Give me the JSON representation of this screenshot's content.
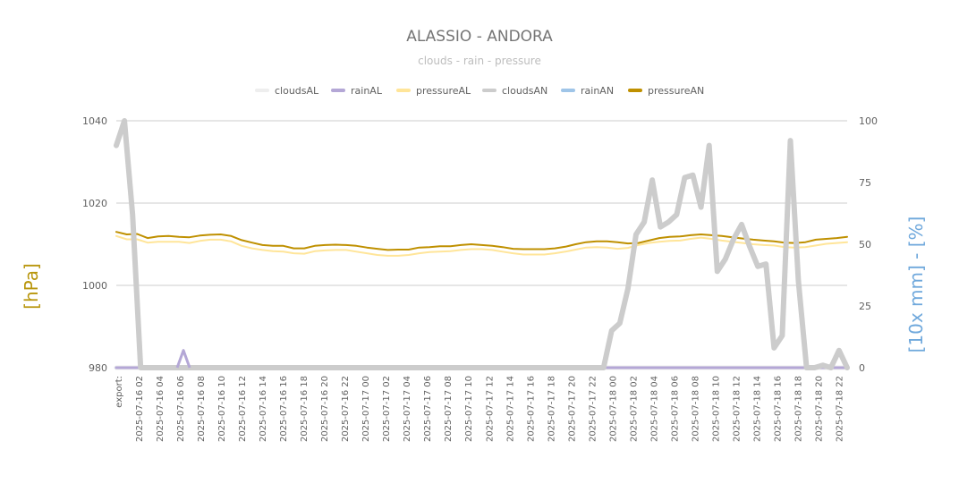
{
  "chart_data": {
    "type": "line",
    "title": "ALASSIO - ANDORA",
    "subtitle": "clouds - rain - pressure",
    "y_left": {
      "label": "[hPa]",
      "range": [
        980,
        1040
      ],
      "ticks": [
        980,
        1000,
        1020,
        1040
      ],
      "color": "#b8960c"
    },
    "y_right": {
      "label": "[10x mm] - [%]",
      "range": [
        0,
        100
      ],
      "ticks": [
        0,
        25,
        50,
        75,
        100
      ],
      "color": "#6fa8dc"
    },
    "x_labels": [
      "export:",
      "2025-07-16 02",
      "2025-07-16 04",
      "2025-07-16 06",
      "2025-07-16 08",
      "2025-07-16 10",
      "2025-07-16 12",
      "2025-07-16 14",
      "2025-07-16 16",
      "2025-07-16 18",
      "2025-07-16 20",
      "2025-07-16 22",
      "2025-07-17 00",
      "2025-07-17 02",
      "2025-07-17 04",
      "2025-07-17 06",
      "2025-07-17 08",
      "2025-07-17 10",
      "2025-07-17 12",
      "2025-07-17 14",
      "2025-07-17 16",
      "2025-07-17 18",
      "2025-07-17 20",
      "2025-07-17 22",
      "2025-07-18 00",
      "2025-07-18 02",
      "2025-07-18 04",
      "2025-07-18 06",
      "2025-07-18 08",
      "2025-07-18 10",
      "2025-07-18 12",
      "2025-07-18 14",
      "2025-07-18 16",
      "2025-07-18 18",
      "2025-07-18 20",
      "2025-07-18 22"
    ],
    "legend_position": "top",
    "grid": true,
    "series": [
      {
        "name": "cloudsAL",
        "axis": "right",
        "color": "#eeeeee",
        "width": 5,
        "values": [
          0,
          0,
          0,
          0,
          0,
          0,
          0,
          0,
          0,
          0,
          0,
          0,
          0,
          0,
          0,
          0,
          0,
          0,
          0,
          0,
          0,
          0,
          0,
          0,
          0,
          0,
          0,
          0,
          0,
          0,
          0,
          0,
          0,
          0,
          0,
          0,
          0,
          0,
          0,
          0,
          0,
          0,
          0,
          0,
          0,
          0,
          0,
          0,
          0,
          0,
          0,
          0,
          0,
          0,
          0,
          0,
          0,
          0,
          0,
          0,
          0,
          0,
          0,
          0,
          0,
          0,
          0,
          0,
          0,
          0,
          0,
          0,
          0,
          0,
          0,
          0,
          0,
          0,
          0,
          0,
          0,
          0,
          0,
          0,
          0,
          0,
          0,
          0,
          0,
          0,
          0,
          0,
          0,
          0,
          0,
          0,
          0,
          0,
          0,
          0,
          0,
          0,
          0,
          0,
          0,
          0,
          0,
          0,
          0,
          0,
          0,
          0,
          0,
          0,
          0,
          0,
          0,
          0,
          0,
          0,
          0,
          0,
          0,
          0,
          0,
          0
        ]
      },
      {
        "name": "rainAL",
        "axis": "right",
        "color": "#b4a7d6",
        "width": 3,
        "values": [
          0,
          0,
          0,
          0,
          0,
          0,
          0,
          0,
          0,
          0,
          0,
          0,
          0,
          0,
          0,
          0,
          0,
          0,
          0,
          0,
          0,
          0,
          0,
          0,
          0,
          0,
          0,
          0,
          0,
          0,
          0,
          0,
          0,
          0,
          0,
          0,
          0,
          0,
          0,
          0,
          0,
          0,
          0,
          0,
          0,
          0,
          0,
          0,
          0,
          0,
          0,
          0,
          0,
          0,
          0,
          0,
          0,
          0,
          0,
          0,
          0,
          0,
          0,
          0,
          0,
          0,
          0,
          0,
          0,
          0,
          0,
          0,
          0,
          0,
          0,
          0,
          0,
          0,
          0,
          0,
          0,
          0,
          0,
          0,
          0,
          0,
          0,
          0,
          0,
          0,
          0,
          0,
          0,
          0,
          0,
          0,
          0,
          0,
          0,
          0,
          0,
          0,
          0,
          0,
          0,
          0,
          0,
          0,
          0,
          0,
          0,
          0,
          0,
          0,
          0,
          0,
          0,
          0,
          0,
          0,
          0,
          0,
          0,
          0,
          0,
          0
        ]
      },
      {
        "name": "pressureAL",
        "axis": "left",
        "color": "#ffe599",
        "width": 2,
        "values": [
          1012,
          1011.2,
          1011.2,
          1010.4,
          1010.6,
          1010.6,
          1010.6,
          1010.3,
          1010.8,
          1011.1,
          1011.1,
          1010.7,
          1009.6,
          1009,
          1008.6,
          1008.3,
          1008.2,
          1007.8,
          1007.7,
          1008.3,
          1008.5,
          1008.6,
          1008.6,
          1008.2,
          1007.8,
          1007.4,
          1007.2,
          1007.2,
          1007.4,
          1007.8,
          1008.1,
          1008.2,
          1008.3,
          1008.6,
          1008.8,
          1008.8,
          1008.6,
          1008.2,
          1007.8,
          1007.5,
          1007.5,
          1007.5,
          1007.8,
          1008.2,
          1008.7,
          1009.2,
          1009.3,
          1009.2,
          1008.9,
          1009.1,
          1009.8,
          1010.3,
          1010.6,
          1010.8,
          1010.9,
          1011.3,
          1011.6,
          1011.3,
          1010.9,
          1010.6,
          1010.3,
          1010,
          1009.8,
          1009.7,
          1009.3,
          1009.2,
          1009.3,
          1009.7,
          1010.1,
          1010.3,
          1010.5
        ]
      },
      {
        "name": "cloudsAN",
        "axis": "right",
        "color": "#cccccc",
        "width": 6,
        "values": [
          90,
          100,
          62,
          0,
          0,
          0,
          0,
          0,
          0,
          0,
          0,
          0,
          0,
          0,
          0,
          0,
          0,
          0,
          0,
          0,
          0,
          0,
          0,
          0,
          0,
          0,
          0,
          0,
          0,
          0,
          0,
          0,
          0,
          0,
          0,
          0,
          0,
          0,
          0,
          0,
          0,
          0,
          0,
          0,
          0,
          0,
          0,
          0,
          0,
          0,
          0,
          0,
          0,
          0,
          0,
          0,
          0,
          0,
          0,
          0,
          0,
          15,
          18,
          32,
          54,
          59,
          76,
          57,
          59,
          62,
          77,
          78,
          65,
          90,
          39,
          44,
          52,
          58,
          49,
          41,
          42,
          8,
          13,
          92,
          35,
          0,
          0,
          1,
          0,
          7,
          0
        ]
      },
      {
        "name": "rainAN",
        "axis": "right",
        "color": "#9fc5e8",
        "width": 3,
        "values": [
          0,
          0,
          0,
          0,
          0,
          0,
          0,
          0,
          0,
          0,
          0,
          0,
          0,
          0,
          0,
          0,
          0,
          0,
          0,
          0,
          0,
          0,
          0,
          0,
          0,
          0,
          0,
          0,
          0,
          0,
          0,
          0,
          0,
          0,
          0,
          0,
          0,
          0,
          0,
          0,
          0,
          0,
          0,
          0,
          0,
          0,
          0,
          0,
          0,
          0,
          0,
          0,
          0,
          0,
          0,
          0,
          0,
          0,
          0,
          0,
          0,
          0,
          0,
          0,
          0,
          0,
          0,
          0,
          0,
          0,
          0,
          0,
          0,
          0,
          0,
          0,
          0,
          0,
          0,
          0,
          0,
          0,
          0,
          0,
          0,
          0,
          0,
          0,
          0,
          0,
          0
        ]
      },
      {
        "name": "pressureAN",
        "axis": "left",
        "color": "#bf9000",
        "width": 2,
        "values": [
          1013,
          1012.4,
          1012.5,
          1011.5,
          1011.9,
          1012,
          1011.8,
          1011.7,
          1012.1,
          1012.3,
          1012.4,
          1012,
          1011,
          1010.4,
          1009.8,
          1009.6,
          1009.6,
          1009,
          1009,
          1009.6,
          1009.8,
          1009.9,
          1009.8,
          1009.6,
          1009.2,
          1008.9,
          1008.6,
          1008.7,
          1008.7,
          1009.2,
          1009.3,
          1009.5,
          1009.5,
          1009.8,
          1010,
          1009.8,
          1009.6,
          1009.3,
          1008.9,
          1008.8,
          1008.8,
          1008.8,
          1009,
          1009.4,
          1010,
          1010.5,
          1010.7,
          1010.7,
          1010.5,
          1010.2,
          1010.3,
          1010.9,
          1011.5,
          1011.8,
          1011.9,
          1012.2,
          1012.4,
          1012.2,
          1012,
          1011.7,
          1011.4,
          1011.1,
          1010.9,
          1010.7,
          1010.4,
          1010.3,
          1010.5,
          1011.1,
          1011.3,
          1011.5,
          1011.8
        ]
      }
    ]
  }
}
